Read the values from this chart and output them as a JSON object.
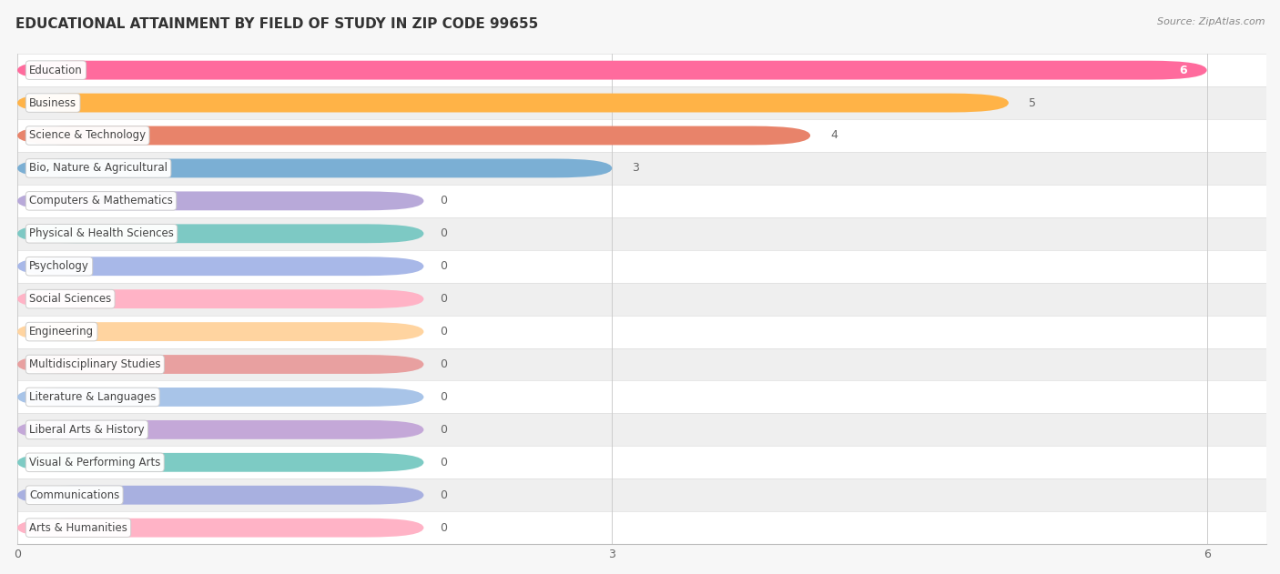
{
  "title": "EDUCATIONAL ATTAINMENT BY FIELD OF STUDY IN ZIP CODE 99655",
  "source": "Source: ZipAtlas.com",
  "categories": [
    "Education",
    "Business",
    "Science & Technology",
    "Bio, Nature & Agricultural",
    "Computers & Mathematics",
    "Physical & Health Sciences",
    "Psychology",
    "Social Sciences",
    "Engineering",
    "Multidisciplinary Studies",
    "Literature & Languages",
    "Liberal Arts & History",
    "Visual & Performing Arts",
    "Communications",
    "Arts & Humanities"
  ],
  "values": [
    6,
    5,
    4,
    3,
    0,
    0,
    0,
    0,
    0,
    0,
    0,
    0,
    0,
    0,
    0
  ],
  "bar_colors": [
    "#FF6B9D",
    "#FFB347",
    "#E8836A",
    "#7BAFD4",
    "#B8A9D9",
    "#7DC9C4",
    "#A8B8E8",
    "#FFB3C6",
    "#FFD4A0",
    "#E8A0A0",
    "#A8C4E8",
    "#C4A8D8",
    "#7DCBC4",
    "#A8B0E0",
    "#FFB3C6"
  ],
  "xlim": [
    0,
    6.3
  ],
  "xticks": [
    0,
    3,
    6
  ],
  "title_fontsize": 11,
  "label_fontsize": 8.5,
  "value_fontsize": 9
}
